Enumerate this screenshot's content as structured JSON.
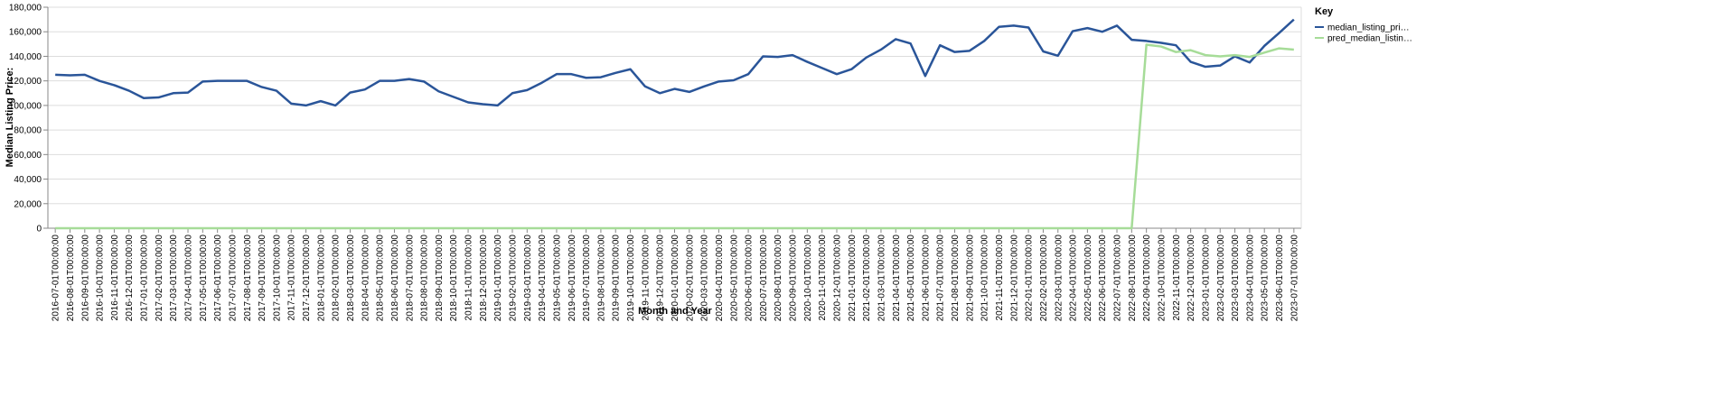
{
  "chart_data": {
    "type": "line",
    "x_label": "Month and Year",
    "y_label": "Median Listing Price:",
    "legend_title": "Key",
    "legend": "right",
    "grid": true,
    "categories": [
      "2016-07-01T00:00:00",
      "2016-08-01T00:00:00",
      "2016-09-01T00:00:00",
      "2016-10-01T00:00:00",
      "2016-11-01T00:00:00",
      "2016-12-01T00:00:00",
      "2017-01-01T00:00:00",
      "2017-02-01T00:00:00",
      "2017-03-01T00:00:00",
      "2017-04-01T00:00:00",
      "2017-05-01T00:00:00",
      "2017-06-01T00:00:00",
      "2017-07-01T00:00:00",
      "2017-08-01T00:00:00",
      "2017-09-01T00:00:00",
      "2017-10-01T00:00:00",
      "2017-11-01T00:00:00",
      "2017-12-01T00:00:00",
      "2018-01-01T00:00:00",
      "2018-02-01T00:00:00",
      "2018-03-01T00:00:00",
      "2018-04-01T00:00:00",
      "2018-05-01T00:00:00",
      "2018-06-01T00:00:00",
      "2018-07-01T00:00:00",
      "2018-08-01T00:00:00",
      "2018-09-01T00:00:00",
      "2018-10-01T00:00:00",
      "2018-11-01T00:00:00",
      "2018-12-01T00:00:00",
      "2019-01-01T00:00:00",
      "2019-02-01T00:00:00",
      "2019-03-01T00:00:00",
      "2019-04-01T00:00:00",
      "2019-05-01T00:00:00",
      "2019-06-01T00:00:00",
      "2019-07-01T00:00:00",
      "2019-08-01T00:00:00",
      "2019-09-01T00:00:00",
      "2019-10-01T00:00:00",
      "2019-11-01T00:00:00",
      "2019-12-01T00:00:00",
      "2020-01-01T00:00:00",
      "2020-02-01T00:00:00",
      "2020-03-01T00:00:00",
      "2020-04-01T00:00:00",
      "2020-05-01T00:00:00",
      "2020-06-01T00:00:00",
      "2020-07-01T00:00:00",
      "2020-08-01T00:00:00",
      "2020-09-01T00:00:00",
      "2020-10-01T00:00:00",
      "2020-11-01T00:00:00",
      "2020-12-01T00:00:00",
      "2021-01-01T00:00:00",
      "2021-02-01T00:00:00",
      "2021-03-01T00:00:00",
      "2021-04-01T00:00:00",
      "2021-05-01T00:00:00",
      "2021-06-01T00:00:00",
      "2021-07-01T00:00:00",
      "2021-08-01T00:00:00",
      "2021-09-01T00:00:00",
      "2021-10-01T00:00:00",
      "2021-11-01T00:00:00",
      "2021-12-01T00:00:00",
      "2022-01-01T00:00:00",
      "2022-02-01T00:00:00",
      "2022-03-01T00:00:00",
      "2022-04-01T00:00:00",
      "2022-05-01T00:00:00",
      "2022-06-01T00:00:00",
      "2022-07-01T00:00:00",
      "2022-08-01T00:00:00",
      "2022-09-01T00:00:00",
      "2022-10-01T00:00:00",
      "2022-11-01T00:00:00",
      "2022-12-01T00:00:00",
      "2023-01-01T00:00:00",
      "2023-02-01T00:00:00",
      "2023-03-01T00:00:00",
      "2023-04-01T00:00:00",
      "2023-05-01T00:00:00",
      "2023-06-01T00:00:00",
      "2023-07-01T00:00:00"
    ],
    "series": [
      {
        "name": "median_listing_pri…",
        "color": "#2a5599",
        "values": [
          125000,
          124500,
          125000,
          120000,
          116500,
          112000,
          106000,
          106500,
          110000,
          110500,
          119500,
          120000,
          120000,
          120000,
          115000,
          112000,
          101500,
          100000,
          103500,
          100000,
          110500,
          113000,
          120000,
          120000,
          121500,
          119500,
          111500,
          107000,
          102500,
          101000,
          100000,
          110000,
          112500,
          118500,
          125500,
          125500,
          122500,
          123000,
          126500,
          129500,
          115500,
          110000,
          113500,
          111000,
          115500,
          119500,
          120500,
          125500,
          140000,
          139500,
          141000,
          135500,
          130500,
          125500,
          129500,
          139000,
          145500,
          154000,
          150500,
          124000,
          149000,
          143500,
          144500,
          152500,
          164000,
          165000,
          163500,
          144000,
          140500,
          160500,
          163000,
          160000,
          165000,
          153500,
          152500,
          151000,
          149000,
          135500,
          131500,
          132500,
          140000,
          135000,
          148500,
          159000,
          170000
        ]
      },
      {
        "name": "pred_median_listin…",
        "color": "#a6dc98",
        "values": [
          0,
          0,
          0,
          0,
          0,
          0,
          0,
          0,
          0,
          0,
          0,
          0,
          0,
          0,
          0,
          0,
          0,
          0,
          0,
          0,
          0,
          0,
          0,
          0,
          0,
          0,
          0,
          0,
          0,
          0,
          0,
          0,
          0,
          0,
          0,
          0,
          0,
          0,
          0,
          0,
          0,
          0,
          0,
          0,
          0,
          0,
          0,
          0,
          0,
          0,
          0,
          0,
          0,
          0,
          0,
          0,
          0,
          0,
          0,
          0,
          0,
          0,
          0,
          0,
          0,
          0,
          0,
          0,
          0,
          0,
          0,
          0,
          0,
          0,
          149500,
          148000,
          143500,
          145000,
          141000,
          140000,
          141000,
          139500,
          143000,
          146500,
          145500
        ]
      }
    ],
    "ylim": [
      0,
      180000
    ],
    "yticks": [
      0,
      {
        "value": 20000,
        "label": "20,000"
      },
      {
        "value": 40000,
        "label": "40,000"
      },
      {
        "value": 60000,
        "label": "60,000"
      },
      {
        "value": 80000,
        "label": "80,000"
      },
      {
        "value": 100000,
        "label": "100,000"
      },
      {
        "value": 120000,
        "label": "120,000"
      },
      {
        "value": 140000,
        "label": "140,000"
      },
      {
        "value": 160000,
        "label": "160,000"
      },
      {
        "value": 180000,
        "label": "180,000"
      }
    ]
  }
}
